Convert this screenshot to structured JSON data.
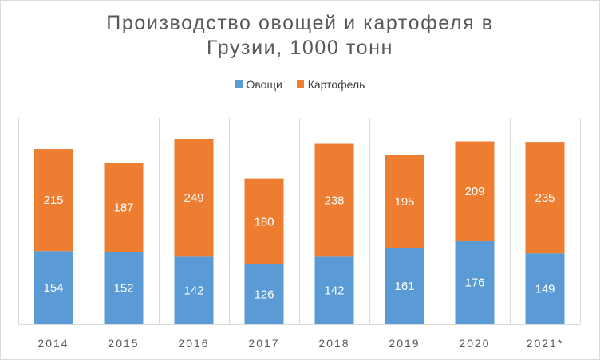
{
  "chart_data": {
    "type": "bar",
    "stacked": true,
    "title": "Производство овощей и картофеля в Грузии, 1000 тонн",
    "title_lines": [
      "Производство овощей и картофеля в",
      "Грузии, 1000 тонн"
    ],
    "categories": [
      "2014",
      "2015",
      "2016",
      "2017",
      "2018",
      "2019",
      "2020",
      "2021*"
    ],
    "series": [
      {
        "name": "Овощи",
        "color": "#5b9bd5",
        "values": [
          154,
          152,
          142,
          126,
          142,
          161,
          176,
          149
        ]
      },
      {
        "name": "Картофель",
        "color": "#ed7d31",
        "values": [
          215,
          187,
          249,
          180,
          238,
          195,
          209,
          235
        ]
      }
    ],
    "ylim": [
      0,
      420
    ],
    "xlabel": "",
    "ylabel": "",
    "grid": "vertical category separators",
    "legend": "top-center"
  }
}
